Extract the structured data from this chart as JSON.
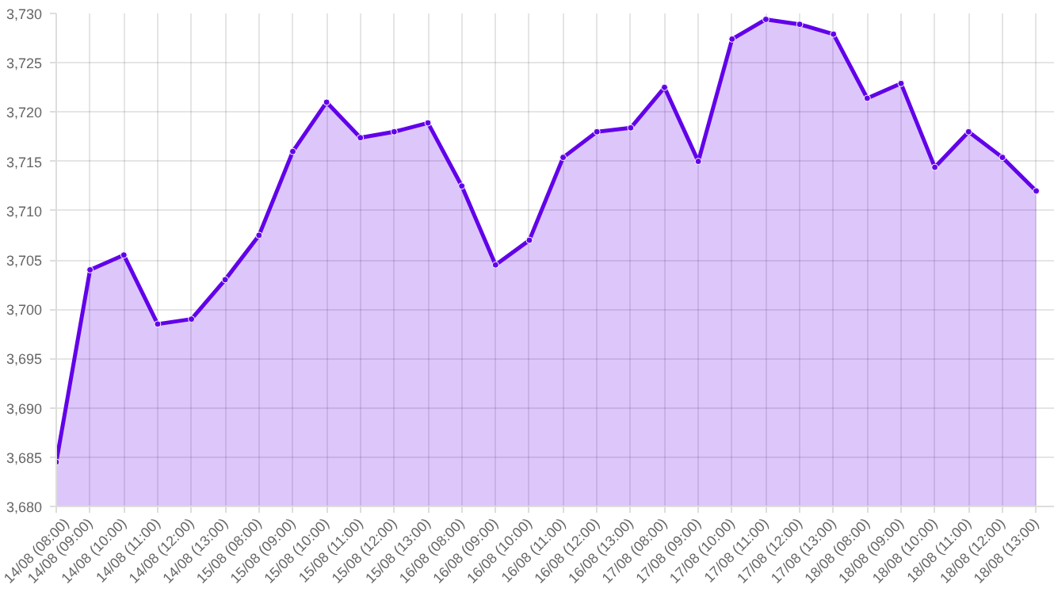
{
  "chart_data": {
    "type": "area",
    "categories": [
      "14/08 (08:00)",
      "14/08 (09:00)",
      "14/08 (10:00)",
      "14/08 (11:00)",
      "14/08 (12:00)",
      "14/08 (13:00)",
      "15/08 (08:00)",
      "15/08 (09:00)",
      "15/08 (10:00)",
      "15/08 (11:00)",
      "15/08 (12:00)",
      "15/08 (13:00)",
      "16/08 (08:00)",
      "16/08 (09:00)",
      "16/08 (10:00)",
      "16/08 (11:00)",
      "16/08 (12:00)",
      "16/08 (13:00)",
      "17/08 (08:00)",
      "17/08 (09:00)",
      "17/08 (10:00)",
      "17/08 (11:00)",
      "17/08 (12:00)",
      "17/08 (13:00)",
      "18/08 (08:00)",
      "18/08 (09:00)",
      "18/08 (10:00)",
      "18/08 (11:00)",
      "18/08 (12:00)",
      "18/08 (13:00)"
    ],
    "series": [
      {
        "color": "#6200ea",
        "values": [
          3684.5,
          3704.0,
          3705.5,
          3698.5,
          3699.0,
          3703.0,
          3707.5,
          3716.0,
          3721.0,
          3717.4,
          3718.0,
          3718.9,
          3712.5,
          3704.5,
          3707.0,
          3715.4,
          3718.0,
          3718.4,
          3722.5,
          3715.0,
          3727.4,
          3729.4,
          3728.9,
          3727.9,
          3721.4,
          3722.9,
          3714.4,
          3718.0,
          3715.4,
          3712.0
        ]
      }
    ],
    "ylim": [
      3680,
      3730
    ],
    "yticks": [
      {
        "value": 3680,
        "label": "3,680"
      },
      {
        "value": 3685,
        "label": "3,685"
      },
      {
        "value": 3690,
        "label": "3,690"
      },
      {
        "value": 3695,
        "label": "3,695"
      },
      {
        "value": 3700,
        "label": "3,700"
      },
      {
        "value": 3705,
        "label": "3,705"
      },
      {
        "value": 3710,
        "label": "3,710"
      },
      {
        "value": 3715,
        "label": "3,715"
      },
      {
        "value": 3720,
        "label": "3,720"
      },
      {
        "value": 3725,
        "label": "3,725"
      },
      {
        "value": 3730,
        "label": "3,730"
      }
    ],
    "grid": true,
    "marker": "circle",
    "line_style": "solid"
  }
}
